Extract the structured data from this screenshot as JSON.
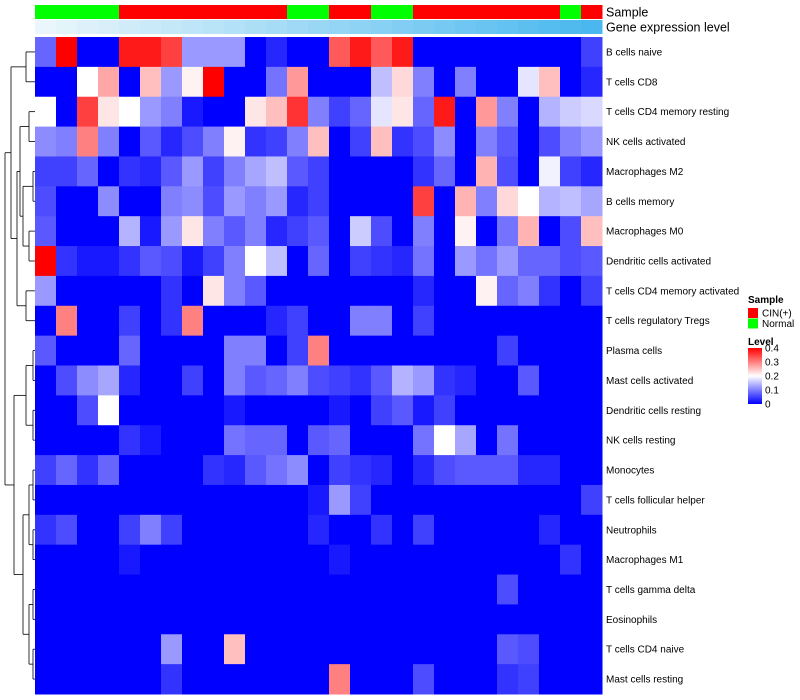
{
  "chart_data": {
    "type": "heatmap",
    "title": "",
    "annotation_tracks": [
      "Sample",
      "Gene expression level"
    ],
    "rows": [
      "B cells naive",
      "T cells CD8",
      "T cells CD4 memory resting",
      "NK cells activated",
      "Macrophages M2",
      "B cells memory",
      "Macrophages M0",
      "Dendritic cells activated",
      "T cells CD4 memory activated",
      "T cells regulatory  Tregs",
      "Plasma cells",
      "Mast cells activated",
      "Dendritic cells resting",
      "NK cells resting",
      "Monocytes",
      "T cells follicular helper",
      "Neutrophils",
      "Macrophages M1",
      "T cells gamma delta",
      "Eosinophils",
      "T cells CD4 naive",
      "Mast cells resting"
    ],
    "sample_groups": [
      "Normal",
      "Normal",
      "Normal",
      "Normal",
      "CIN(+)",
      "CIN(+)",
      "CIN(+)",
      "CIN(+)",
      "CIN(+)",
      "CIN(+)",
      "CIN(+)",
      "CIN(+)",
      "Normal",
      "Normal",
      "CIN(+)",
      "CIN(+)",
      "Normal",
      "Normal",
      "CIN(+)",
      "CIN(+)",
      "CIN(+)",
      "CIN(+)",
      "CIN(+)",
      "CIN(+)",
      "CIN(+)",
      "Normal",
      "CIN(+)"
    ],
    "expression_levels": [
      0.05,
      0.08,
      0.11,
      0.14,
      0.17,
      0.2,
      0.23,
      0.26,
      0.29,
      0.32,
      0.35,
      0.38,
      0.41,
      0.44,
      0.47,
      0.5,
      0.53,
      0.56,
      0.59,
      0.62,
      0.65,
      0.68,
      0.71,
      0.74,
      0.77,
      0.8,
      0.83
    ],
    "values": [
      [
        0.08,
        0.4,
        0.0,
        0.0,
        0.38,
        0.38,
        0.35,
        0.12,
        0.12,
        0.12,
        0.0,
        0.03,
        0.0,
        0.0,
        0.33,
        0.38,
        0.33,
        0.38,
        0.0,
        0.0,
        0.0,
        0.0,
        0.0,
        0.0,
        0.0,
        0.0,
        0.05
      ],
      [
        0.0,
        0.0,
        0.2,
        0.27,
        0.0,
        0.25,
        0.12,
        0.21,
        0.4,
        0.0,
        0.0,
        0.09,
        0.28,
        0.0,
        0.0,
        0.0,
        0.15,
        0.23,
        0.1,
        0.0,
        0.1,
        0.0,
        0.0,
        0.18,
        0.25,
        0.0,
        0.03
      ],
      [
        0.2,
        0.0,
        0.35,
        0.22,
        0.2,
        0.12,
        0.1,
        0.02,
        0.0,
        0.0,
        0.22,
        0.25,
        0.36,
        0.1,
        0.05,
        0.08,
        0.18,
        0.22,
        0.08,
        0.38,
        0.0,
        0.28,
        0.1,
        0.0,
        0.14,
        0.16,
        0.17
      ],
      [
        0.11,
        0.1,
        0.3,
        0.1,
        0.0,
        0.07,
        0.03,
        0.06,
        0.1,
        0.21,
        0.04,
        0.05,
        0.1,
        0.25,
        0.0,
        0.05,
        0.25,
        0.04,
        0.06,
        0.11,
        0.0,
        0.1,
        0.07,
        0.0,
        0.06,
        0.1,
        0.12
      ],
      [
        0.05,
        0.05,
        0.08,
        0.0,
        0.04,
        0.03,
        0.07,
        0.12,
        0.05,
        0.1,
        0.13,
        0.15,
        0.07,
        0.05,
        0.0,
        0.0,
        0.0,
        0.0,
        0.04,
        0.08,
        0.0,
        0.26,
        0.06,
        0.0,
        0.19,
        0.05,
        0.03
      ],
      [
        0.06,
        0.0,
        0.0,
        0.11,
        0.0,
        0.0,
        0.1,
        0.11,
        0.06,
        0.12,
        0.1,
        0.12,
        0.03,
        0.05,
        0.0,
        0.0,
        0.0,
        0.0,
        0.35,
        0.0,
        0.26,
        0.1,
        0.23,
        0.2,
        0.14,
        0.15,
        0.13
      ],
      [
        0.07,
        0.0,
        0.0,
        0.0,
        0.14,
        0.02,
        0.12,
        0.22,
        0.1,
        0.07,
        0.1,
        0.03,
        0.05,
        0.07,
        0.0,
        0.16,
        0.06,
        0.0,
        0.1,
        0.0,
        0.21,
        0.0,
        0.09,
        0.26,
        0.0,
        0.06,
        0.25
      ],
      [
        0.4,
        0.04,
        0.02,
        0.02,
        0.04,
        0.07,
        0.06,
        0.02,
        0.05,
        0.1,
        0.2,
        0.15,
        0.0,
        0.08,
        0.0,
        0.05,
        0.04,
        0.03,
        0.09,
        0.0,
        0.12,
        0.09,
        0.12,
        0.08,
        0.08,
        0.06,
        0.07
      ],
      [
        0.12,
        0.0,
        0.0,
        0.0,
        0.0,
        0.0,
        0.04,
        0.0,
        0.22,
        0.1,
        0.07,
        0.0,
        0.0,
        0.0,
        0.0,
        0.0,
        0.0,
        0.0,
        0.03,
        0.0,
        0.0,
        0.21,
        0.08,
        0.1,
        0.04,
        0.0,
        0.05
      ],
      [
        0.0,
        0.3,
        0.0,
        0.0,
        0.05,
        0.0,
        0.04,
        0.3,
        0.0,
        0.0,
        0.0,
        0.03,
        0.05,
        0.0,
        0.0,
        0.1,
        0.1,
        0.0,
        0.05,
        0.0,
        0.0,
        0.0,
        0.0,
        0.0,
        0.0,
        0.0,
        0.0
      ],
      [
        0.07,
        0.0,
        0.0,
        0.0,
        0.08,
        0.0,
        0.0,
        0.0,
        0.0,
        0.1,
        0.1,
        0.0,
        0.05,
        0.3,
        0.0,
        0.0,
        0.0,
        0.0,
        0.0,
        0.0,
        0.0,
        0.0,
        0.05,
        0.0,
        0.0,
        0.0,
        0.0
      ],
      [
        0.0,
        0.06,
        0.11,
        0.13,
        0.03,
        0.0,
        0.0,
        0.05,
        0.0,
        0.1,
        0.07,
        0.08,
        0.1,
        0.06,
        0.05,
        0.04,
        0.07,
        0.14,
        0.12,
        0.04,
        0.03,
        0.0,
        0.0,
        0.07,
        0.0,
        0.0,
        0.0
      ],
      [
        0.0,
        0.0,
        0.06,
        0.2,
        0.0,
        0.0,
        0.0,
        0.0,
        0.0,
        0.02,
        0.0,
        0.0,
        0.0,
        0.0,
        0.02,
        0.0,
        0.05,
        0.07,
        0.02,
        0.05,
        0.0,
        0.0,
        0.0,
        0.0,
        0.0,
        0.0,
        0.0
      ],
      [
        0.0,
        0.0,
        0.0,
        0.0,
        0.04,
        0.02,
        0.0,
        0.0,
        0.0,
        0.09,
        0.08,
        0.08,
        0.0,
        0.07,
        0.08,
        0.0,
        0.0,
        0.0,
        0.09,
        0.2,
        0.13,
        0.0,
        0.09,
        0.0,
        0.0,
        0.0,
        0.0
      ],
      [
        0.05,
        0.08,
        0.04,
        0.08,
        0.0,
        0.0,
        0.0,
        0.0,
        0.04,
        0.03,
        0.07,
        0.09,
        0.11,
        0.0,
        0.05,
        0.04,
        0.03,
        0.0,
        0.03,
        0.06,
        0.07,
        0.07,
        0.07,
        0.03,
        0.03,
        0.0,
        0.0
      ],
      [
        0.0,
        0.0,
        0.0,
        0.0,
        0.0,
        0.0,
        0.0,
        0.0,
        0.0,
        0.0,
        0.0,
        0.0,
        0.0,
        0.02,
        0.12,
        0.05,
        0.0,
        0.0,
        0.0,
        0.0,
        0.0,
        0.0,
        0.0,
        0.0,
        0.0,
        0.0,
        0.05
      ],
      [
        0.04,
        0.06,
        0.0,
        0.0,
        0.05,
        0.1,
        0.05,
        0.0,
        0.0,
        0.0,
        0.0,
        0.0,
        0.0,
        0.03,
        0.0,
        0.0,
        0.04,
        0.0,
        0.05,
        0.0,
        0.0,
        0.0,
        0.0,
        0.0,
        0.03,
        0.0,
        0.0
      ],
      [
        0.0,
        0.0,
        0.0,
        0.0,
        0.02,
        0.0,
        0.0,
        0.0,
        0.0,
        0.0,
        0.0,
        0.0,
        0.0,
        0.0,
        0.02,
        0.0,
        0.0,
        0.0,
        0.0,
        0.0,
        0.0,
        0.0,
        0.0,
        0.0,
        0.0,
        0.04,
        0.0
      ],
      [
        0.0,
        0.0,
        0.0,
        0.0,
        0.0,
        0.0,
        0.0,
        0.0,
        0.0,
        0.0,
        0.0,
        0.0,
        0.0,
        0.0,
        0.0,
        0.0,
        0.0,
        0.0,
        0.0,
        0.0,
        0.0,
        0.0,
        0.06,
        0.0,
        0.0,
        0.0,
        0.0
      ],
      [
        0.0,
        0.0,
        0.0,
        0.0,
        0.0,
        0.0,
        0.0,
        0.0,
        0.0,
        0.0,
        0.0,
        0.0,
        0.0,
        0.0,
        0.0,
        0.0,
        0.0,
        0.0,
        0.0,
        0.0,
        0.0,
        0.0,
        0.0,
        0.0,
        0.0,
        0.0,
        0.0
      ],
      [
        0.0,
        0.0,
        0.0,
        0.0,
        0.0,
        0.0,
        0.12,
        0.0,
        0.0,
        0.25,
        0.0,
        0.0,
        0.0,
        0.0,
        0.0,
        0.0,
        0.0,
        0.0,
        0.0,
        0.0,
        0.0,
        0.0,
        0.07,
        0.06,
        0.0,
        0.0,
        0.0
      ],
      [
        0.0,
        0.0,
        0.0,
        0.0,
        0.0,
        0.0,
        0.04,
        0.0,
        0.0,
        0.0,
        0.0,
        0.0,
        0.0,
        0.0,
        0.3,
        0.0,
        0.0,
        0.0,
        0.06,
        0.0,
        0.0,
        0.0,
        0.04,
        0.05,
        0.0,
        0.0,
        0.0
      ]
    ],
    "color_scale": {
      "min": 0,
      "max": 0.4,
      "stops": [
        [
          0,
          "#0000ff"
        ],
        [
          0.2,
          "#ffffff"
        ],
        [
          0.4,
          "#ff0000"
        ]
      ]
    },
    "legend": {
      "sample_title": "Sample",
      "sample_items": [
        {
          "label": "CIN(+)",
          "color": "#ff0000"
        },
        {
          "label": "Normal",
          "color": "#00ff00"
        }
      ],
      "level_title": "Level",
      "level_ticks": [
        0.4,
        0.3,
        0.2,
        0.1,
        0
      ]
    },
    "annotation_colors": {
      "CIN(+)": "#ff0000",
      "Normal": "#00ff00",
      "expression_low": "#eaf6fb",
      "expression_high": "#4ab8ef"
    },
    "legend_position": "right",
    "grid": false
  }
}
